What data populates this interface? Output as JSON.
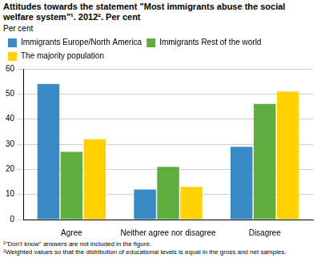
{
  "chart_data": {
    "type": "bar",
    "title": "Attitudes towards the statement \"Most immigrants abuse the social welfare system\"¹. 2012². Per cent",
    "ylabel": "Per cent",
    "categories": [
      "Agree",
      "Neither agree nor disagree",
      "Disagree"
    ],
    "series": [
      {
        "name": "Immigrants Europe/North America",
        "color": "#3a8ac6",
        "values": [
          54,
          12,
          29
        ]
      },
      {
        "name": "Immigrants Rest of the world",
        "color": "#5fad3d",
        "values": [
          27,
          21,
          46
        ]
      },
      {
        "name": "The majority population",
        "color": "#ffd200",
        "values": [
          32,
          13,
          51
        ]
      }
    ],
    "ylim": [
      0,
      60
    ],
    "yticks": [
      0,
      10,
      20,
      30,
      40,
      50,
      60
    ],
    "grid": true,
    "legend": "top",
    "notes": [
      "¹\"Don't know\" answers are not included in the figure.",
      "²Weighted values so that the distribution of educational levels is equal in the gross and net samples."
    ]
  }
}
